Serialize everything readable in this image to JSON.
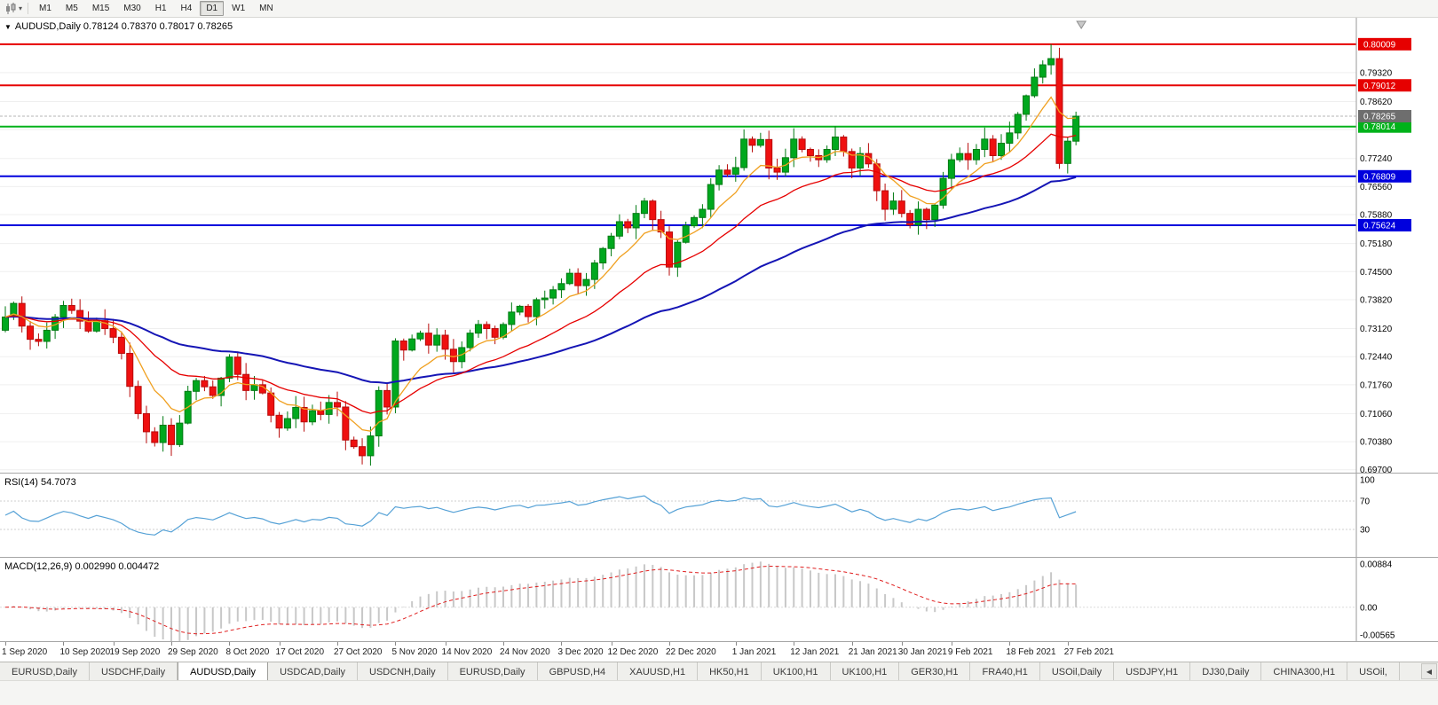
{
  "toolbar": {
    "timeframes": [
      {
        "label": "M1",
        "active": false
      },
      {
        "label": "M5",
        "active": false
      },
      {
        "label": "M15",
        "active": false
      },
      {
        "label": "M30",
        "active": false
      },
      {
        "label": "H1",
        "active": false
      },
      {
        "label": "H4",
        "active": false
      },
      {
        "label": "D1",
        "active": true
      },
      {
        "label": "W1",
        "active": false
      },
      {
        "label": "MN",
        "active": false
      }
    ]
  },
  "chart": {
    "title": "AUDUSD,Daily 0.78124 0.78370 0.78017 0.78265"
  },
  "chart_data": {
    "type": "candlestick",
    "title": "AUDUSD,Daily",
    "symbol": "AUDUSD",
    "timeframe": "Daily",
    "ohlc": {
      "open": 0.78124,
      "high": 0.7837,
      "low": 0.78017,
      "close": 0.78265
    },
    "ylim": [
      0.6963,
      0.8065
    ],
    "closes": [
      0.734,
      0.7373,
      0.7318,
      0.7286,
      0.7281,
      0.7308,
      0.734,
      0.7368,
      0.7356,
      0.733,
      0.7306,
      0.7331,
      0.7312,
      0.7291,
      0.7252,
      0.7172,
      0.7106,
      0.7062,
      0.7036,
      0.7078,
      0.7031,
      0.7083,
      0.716,
      0.7186,
      0.7171,
      0.715,
      0.7192,
      0.7243,
      0.7201,
      0.7162,
      0.7176,
      0.7156,
      0.7102,
      0.7071,
      0.7094,
      0.7121,
      0.7086,
      0.7113,
      0.7104,
      0.7133,
      0.7122,
      0.7042,
      0.7026,
      0.7004,
      0.7052,
      0.7162,
      0.7122,
      0.7282,
      0.726,
      0.7287,
      0.7301,
      0.7272,
      0.7296,
      0.7262,
      0.7232,
      0.7266,
      0.7301,
      0.7322,
      0.7312,
      0.7291,
      0.7322,
      0.7352,
      0.7366,
      0.7341,
      0.7382,
      0.7386,
      0.7406,
      0.7421,
      0.7446,
      0.7416,
      0.7431,
      0.7471,
      0.7506,
      0.7536,
      0.7571,
      0.7556,
      0.7591,
      0.7621,
      0.7576,
      0.7546,
      0.7461,
      0.7521,
      0.7561,
      0.7581,
      0.7601,
      0.7661,
      0.7696,
      0.7686,
      0.7702,
      0.7771,
      0.7756,
      0.777,
      0.7701,
      0.7691,
      0.7726,
      0.7771,
      0.7746,
      0.7731,
      0.7721,
      0.7746,
      0.7776,
      0.7741,
      0.7701,
      0.7736,
      0.7711,
      0.7646,
      0.7601,
      0.7621,
      0.7591,
      0.7563,
      0.7601,
      0.7576,
      0.7611,
      0.7676,
      0.7721,
      0.7736,
      0.7721,
      0.7746,
      0.7771,
      0.7731,
      0.7761,
      0.7786,
      0.7831,
      0.7876,
      0.7921,
      0.7951,
      0.7966,
      0.7712,
      0.7766,
      0.78265
    ],
    "price_axis_labels": [
      "0.79320",
      "0.78620",
      "0.77940",
      "0.77240",
      "0.76560",
      "0.75880",
      "0.75180",
      "0.74500",
      "0.73820",
      "0.73120",
      "0.72440",
      "0.71760",
      "0.71060",
      "0.70380",
      "0.69700"
    ],
    "hlines": [
      {
        "price": 0.80009,
        "label": "0.80009",
        "color": "#e60000"
      },
      {
        "price": 0.79012,
        "label": "0.79012",
        "color": "#e60000"
      },
      {
        "price": 0.78014,
        "label": "0.78014",
        "color": "#00b21a"
      },
      {
        "price": 0.76809,
        "label": "0.76809",
        "color": "#0000dd"
      },
      {
        "price": 0.75624,
        "label": "0.75624",
        "color": "#0000dd"
      }
    ],
    "current_price": {
      "price": 0.78265,
      "label": "0.78265",
      "color": "#6e6e6e"
    },
    "moving_averages": [
      {
        "name": "fast",
        "period": 8,
        "color": "#f0a020"
      },
      {
        "name": "mid",
        "period": 21,
        "color": "#e60000"
      },
      {
        "name": "slow",
        "period": 55,
        "color": "#1515b5"
      }
    ],
    "candle_colors": {
      "up": "#00a81e",
      "up_stroke": "#007a12",
      "down": "#ef1010",
      "down_stroke": "#b80b0b"
    },
    "date_labels": [
      {
        "text": "1 Sep 2020",
        "candle": 0
      },
      {
        "text": "10 Sep 2020",
        "candle": 7
      },
      {
        "text": "19 Sep 2020",
        "candle": 13
      },
      {
        "text": "29 Sep 2020",
        "candle": 20
      },
      {
        "text": "8 Oct 2020",
        "candle": 27
      },
      {
        "text": "17 Oct 2020",
        "candle": 33
      },
      {
        "text": "27 Oct 2020",
        "candle": 40
      },
      {
        "text": "5 Nov 2020",
        "candle": 47
      },
      {
        "text": "14 Nov 2020",
        "candle": 53
      },
      {
        "text": "24 Nov 2020",
        "candle": 60
      },
      {
        "text": "3 Dec 2020",
        "candle": 67
      },
      {
        "text": "12 Dec 2020",
        "candle": 73
      },
      {
        "text": "22 Dec 2020",
        "candle": 80
      },
      {
        "text": "1 Jan 2021",
        "candle": 88
      },
      {
        "text": "12 Jan 2021",
        "candle": 95
      },
      {
        "text": "21 Jan 2021",
        "candle": 102
      },
      {
        "text": "30 Jan 2021",
        "candle": 108
      },
      {
        "text": "9 Feb 2021",
        "candle": 114
      },
      {
        "text": "18 Feb 2021",
        "candle": 121
      },
      {
        "text": "27 Feb 2021",
        "candle": 128
      }
    ],
    "rsi": {
      "title": "RSI(14) 54.7073",
      "period": 14,
      "last_value": 54.7073,
      "levels": [
        "100",
        "70",
        "30"
      ],
      "color": "#55a1d6"
    },
    "macd": {
      "title": "MACD(12,26,9) 0.002990 0.004472",
      "fast": 12,
      "slow": 26,
      "signal": 9,
      "main_value": 0.00299,
      "signal_value": 0.004472,
      "scale_top": 0.00884,
      "scale_bottom": -0.00565,
      "labels": {
        "top": "0.00884",
        "zero": "0.00",
        "bottom": "-0.00565"
      },
      "histogram_color": "#c8c8c8",
      "signal_color": "#e02020"
    }
  },
  "tabs": {
    "items": [
      {
        "label": "EURUSD,Daily",
        "active": false
      },
      {
        "label": "USDCHF,Daily",
        "active": false
      },
      {
        "label": "AUDUSD,Daily",
        "active": true
      },
      {
        "label": "USDCAD,Daily",
        "active": false
      },
      {
        "label": "USDCNH,Daily",
        "active": false
      },
      {
        "label": "EURUSD,Daily",
        "active": false
      },
      {
        "label": "GBPUSD,H4",
        "active": false
      },
      {
        "label": "XAUUSD,H1",
        "active": false
      },
      {
        "label": "HK50,H1",
        "active": false
      },
      {
        "label": "UK100,H1",
        "active": false
      },
      {
        "label": "UK100,H1",
        "active": false
      },
      {
        "label": "GER30,H1",
        "active": false
      },
      {
        "label": "FRA40,H1",
        "active": false
      },
      {
        "label": "USOil,Daily",
        "active": false
      },
      {
        "label": "USDJPY,H1",
        "active": false
      },
      {
        "label": "DJ30,Daily",
        "active": false
      },
      {
        "label": "CHINA300,H1",
        "active": false
      },
      {
        "label": "USOil,",
        "active": false
      }
    ],
    "scroll_left_glyph": "◀"
  }
}
